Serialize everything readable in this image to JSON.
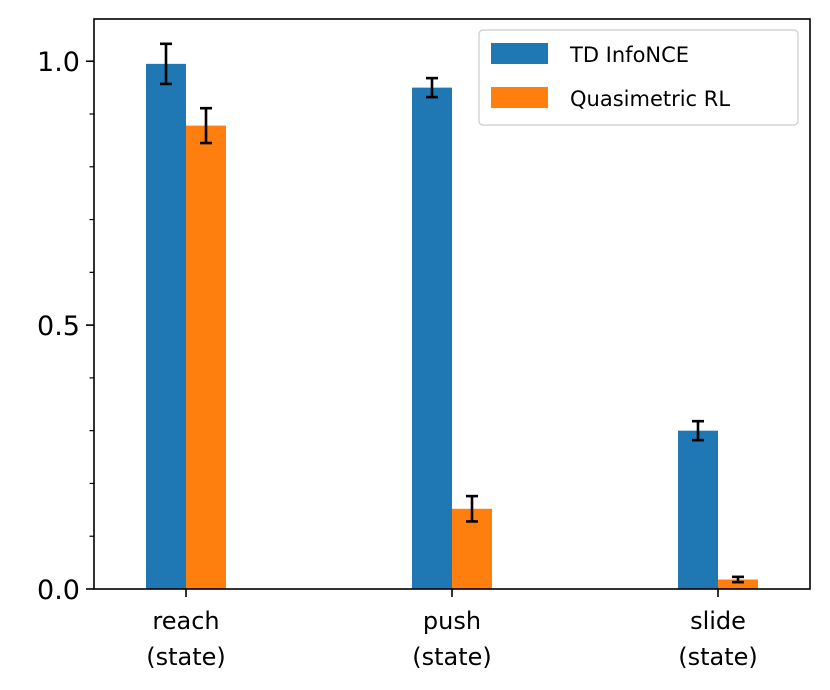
{
  "chart_data": {
    "type": "bar",
    "title": "",
    "xlabel": "",
    "ylabel": "",
    "ylim": [
      0.0,
      1.08
    ],
    "yticks": [
      0.0,
      0.5,
      1.0
    ],
    "ytick_labels": [
      "0.0",
      "0.5",
      "1.0"
    ],
    "yminor_ticks": [
      0.1,
      0.2,
      0.3,
      0.4,
      0.6,
      0.7,
      0.8,
      0.9
    ],
    "grid": false,
    "legend_position": "top-right",
    "categories": [
      {
        "line1": "reach",
        "line2": "(state)"
      },
      {
        "line1": "push",
        "line2": "(state)"
      },
      {
        "line1": "slide",
        "line2": "(state)"
      }
    ],
    "series": [
      {
        "name": "TD InfoNCE",
        "color": "#1f77b4",
        "values": [
          0.995,
          0.95,
          0.3
        ],
        "errors": [
          0.038,
          0.018,
          0.018
        ]
      },
      {
        "name": "Quasimetric RL",
        "color": "#ff7f0e",
        "values": [
          0.878,
          0.152,
          0.018
        ],
        "errors": [
          0.033,
          0.024,
          0.005
        ]
      }
    ]
  }
}
